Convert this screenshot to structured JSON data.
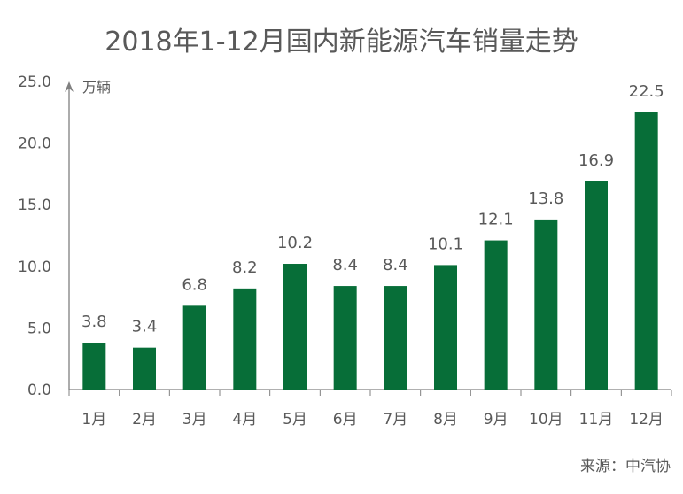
{
  "chart_data": {
    "type": "bar",
    "title": "2018年1-12月国内新能源汽车销量走势",
    "unit_label": "万辆",
    "xlabel": "",
    "ylabel": "万辆",
    "ylim": [
      0,
      25
    ],
    "yticks": [
      0,
      5,
      10,
      15,
      20,
      25
    ],
    "ytick_labels": [
      "0.0",
      "5.0",
      "10.0",
      "15.0",
      "20.0",
      "25.0"
    ],
    "grid": false,
    "legend": null,
    "categories": [
      "1月",
      "2月",
      "3月",
      "4月",
      "5月",
      "6月",
      "7月",
      "8月",
      "9月",
      "10月",
      "11月",
      "12月"
    ],
    "values": [
      3.8,
      3.4,
      6.8,
      8.2,
      10.2,
      8.4,
      8.4,
      10.1,
      12.1,
      13.8,
      16.9,
      22.5
    ],
    "data_labels": [
      "3.8",
      "3.4",
      "6.8",
      "8.2",
      "10.2",
      "8.4",
      "8.4",
      "10.1",
      "12.1",
      "13.8",
      "16.9",
      "22.5"
    ],
    "bar_color": "#076e38",
    "axis_color": "#808080",
    "source": "来源：中汽协"
  }
}
